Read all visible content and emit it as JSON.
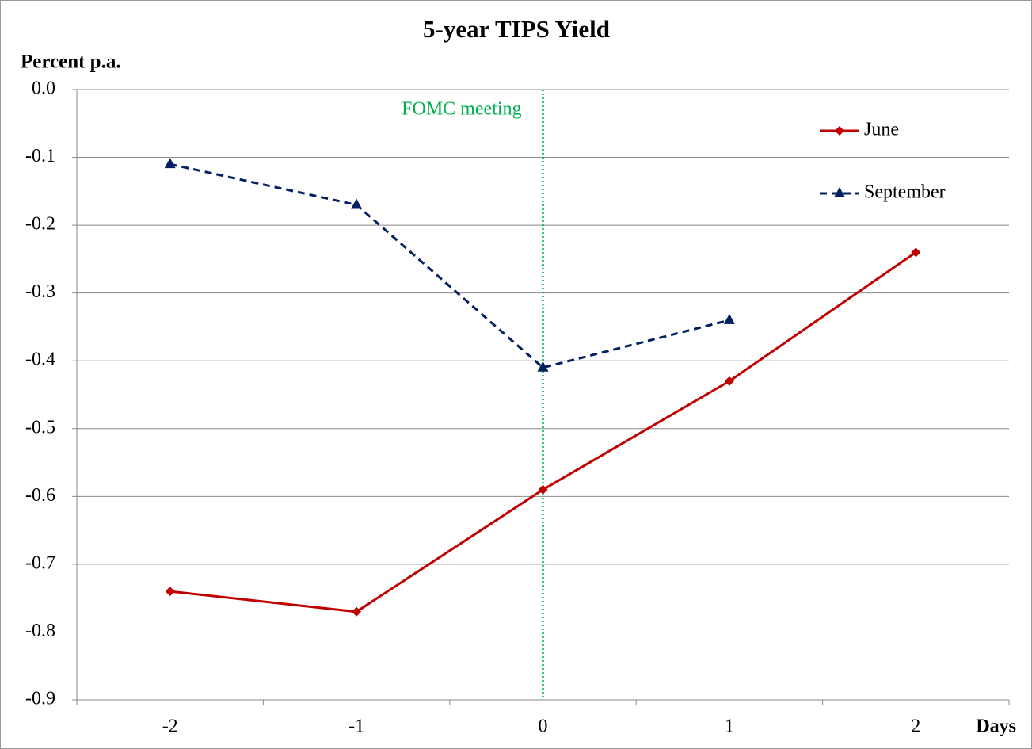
{
  "chart_data": {
    "type": "line",
    "title": "5-year TIPS Yield",
    "y_label": "Percent p.a.",
    "x_label": "Days",
    "categories": [
      "-2",
      "-1",
      "0",
      "1",
      "2"
    ],
    "series": [
      {
        "name": "June",
        "color": "#c00000",
        "line_style": "solid",
        "marker": "diamond",
        "values": [
          -0.74,
          -0.77,
          -0.59,
          -0.43,
          -0.24
        ]
      },
      {
        "name": "September",
        "color": "#002060",
        "line_style": "dashed",
        "marker": "triangle",
        "values": [
          -0.11,
          -0.17,
          -0.41,
          -0.34,
          null
        ]
      }
    ],
    "ylim": [
      -0.9,
      0
    ],
    "yticks": [
      {
        "value": 0,
        "label": "0.0"
      },
      -0.1,
      -0.2,
      -0.3,
      -0.4,
      -0.5,
      -0.6,
      -0.7,
      -0.8,
      -0.9
    ],
    "grid": true,
    "legend": "top-right",
    "annotations": [
      {
        "text": "FOMC meeting",
        "category": "0",
        "color": "#00b050"
      }
    ]
  }
}
